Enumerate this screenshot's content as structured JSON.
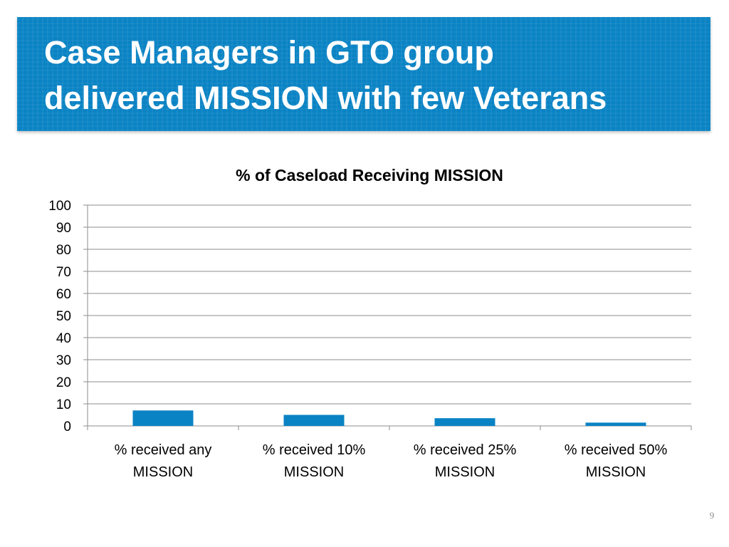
{
  "slide": {
    "title_lines": [
      "Case Managers in GTO group",
      "delivered MISSION with few Veterans"
    ],
    "page_number": "9"
  },
  "colors": {
    "banner": "#0a83c4",
    "bar": "#0a83c4",
    "gridline": "#8c8c8c",
    "text": "#000000"
  },
  "chart_data": {
    "type": "bar",
    "title": "% of Caseload Receiving MISSION",
    "categories": [
      [
        "% received any",
        "MISSION"
      ],
      [
        "% received 10%",
        "MISSION"
      ],
      [
        "% received 25%",
        "MISSION"
      ],
      [
        "% received 50%",
        "MISSION"
      ]
    ],
    "values": [
      7,
      5,
      3.5,
      1.5
    ],
    "xlabel": "",
    "ylabel": "",
    "ylim": [
      0,
      100
    ],
    "yticks": [
      0,
      10,
      20,
      30,
      40,
      50,
      60,
      70,
      80,
      90,
      100
    ],
    "grid": true,
    "legend": "none"
  }
}
